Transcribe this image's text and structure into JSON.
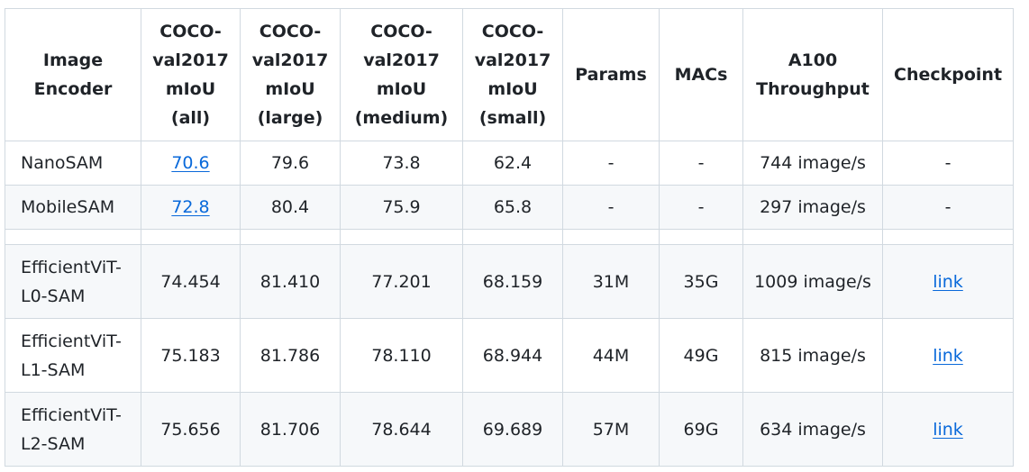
{
  "table": {
    "headers": [
      "Image Encoder",
      "COCO-val2017 mIoU (all)",
      "COCO-val2017 mIoU (large)",
      "COCO-val2017 mIoU (medium)",
      "COCO-val2017 mIoU (small)",
      "Params",
      "MACs",
      "A100 Throughput",
      "Checkpoint"
    ],
    "rows": [
      [
        "NanoSAM",
        "70.6",
        "79.6",
        "73.8",
        "62.4",
        "-",
        "-",
        "744 image/s",
        "-"
      ],
      [
        "MobileSAM",
        "72.8",
        "80.4",
        "75.9",
        "65.8",
        "-",
        "-",
        "297 image/s",
        "-"
      ],
      [
        "",
        "",
        "",
        "",
        "",
        "",
        "",
        "",
        ""
      ],
      [
        "EfficientViT-L0-SAM",
        "74.454",
        "81.410",
        "77.201",
        "68.159",
        "31M",
        "35G",
        "1009 image/s",
        "link"
      ],
      [
        "EfficientViT-L1-SAM",
        "75.183",
        "81.786",
        "78.110",
        "68.944",
        "44M",
        "49G",
        "815 image/s",
        "link"
      ],
      [
        "EfficientViT-L2-SAM",
        "75.656",
        "81.706",
        "78.644",
        "69.689",
        "57M",
        "69G",
        "634 image/s",
        "link"
      ]
    ]
  },
  "colors": {
    "border": "#d1d9e0",
    "stripe": "#f6f8fa",
    "link": "#0969da",
    "text": "#1f2328"
  }
}
